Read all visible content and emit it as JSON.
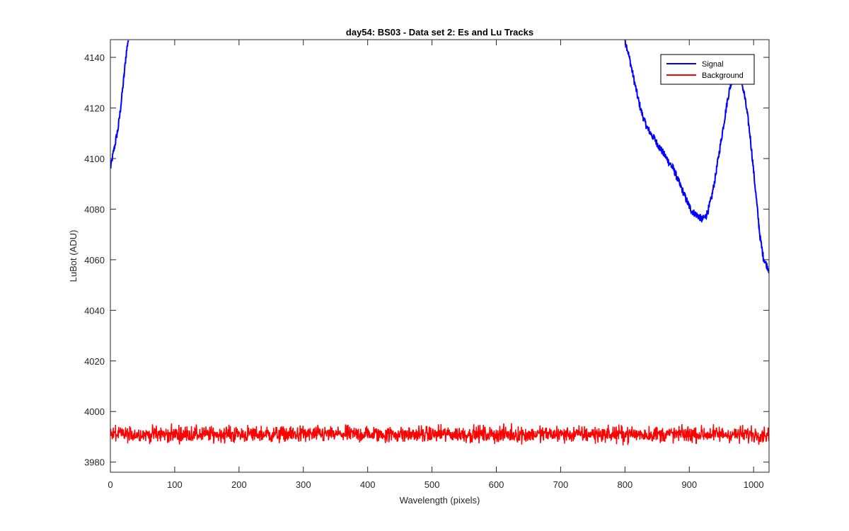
{
  "chart_data": {
    "type": "line",
    "title": "day54: BS03 - Data set 2: Es and Lu Tracks",
    "xlabel": "Wavelength (pixels)",
    "ylabel": "LuBot (ADU)",
    "xlim": [
      0,
      1024
    ],
    "ylim": [
      3976,
      4147
    ],
    "xticks": [
      0,
      100,
      200,
      300,
      400,
      500,
      600,
      700,
      800,
      900,
      1000
    ],
    "yticks": [
      3980,
      4000,
      4020,
      4040,
      4060,
      4080,
      4100,
      4120,
      4140
    ],
    "grid": false,
    "legend_location": "top-right",
    "series": [
      {
        "name": "Signal",
        "color": "#0000ff",
        "x": [
          0,
          3,
          6,
          9,
          12,
          15,
          18,
          21,
          24,
          26,
          27,
          28,
          800,
          805,
          810,
          815,
          820,
          825,
          830,
          835,
          840,
          845,
          850,
          855,
          860,
          865,
          870,
          875,
          880,
          885,
          890,
          895,
          900,
          905,
          910,
          915,
          920,
          925,
          930,
          935,
          940,
          945,
          950,
          955,
          960,
          965,
          970,
          975,
          980,
          985,
          990,
          995,
          1000,
          1005,
          1010,
          1015,
          1020,
          1024
        ],
        "y": [
          4096,
          4100,
          4104,
          4108,
          4112,
          4118,
          4125,
          4132,
          4140,
          4144,
          4146,
          4147,
          4147,
          4142,
          4136,
          4130,
          4124,
          4119,
          4115,
          4112,
          4110,
          4108,
          4106,
          4104,
          4102,
          4100,
          4098,
          4096,
          4093,
          4090,
          4087,
          4084,
          4081,
          4079,
          4078,
          4077,
          4076,
          4077,
          4080,
          4085,
          4092,
          4100,
          4108,
          4116,
          4124,
          4130,
          4134,
          4135,
          4132,
          4126,
          4118,
          4108,
          4095,
          4082,
          4069,
          4061,
          4058,
          4056
        ]
      },
      {
        "name": "Background",
        "color": "#ff0000",
        "x": [
          0,
          1024
        ],
        "y": [
          3991,
          3991
        ],
        "noise_amplitude": 2.5
      }
    ]
  }
}
